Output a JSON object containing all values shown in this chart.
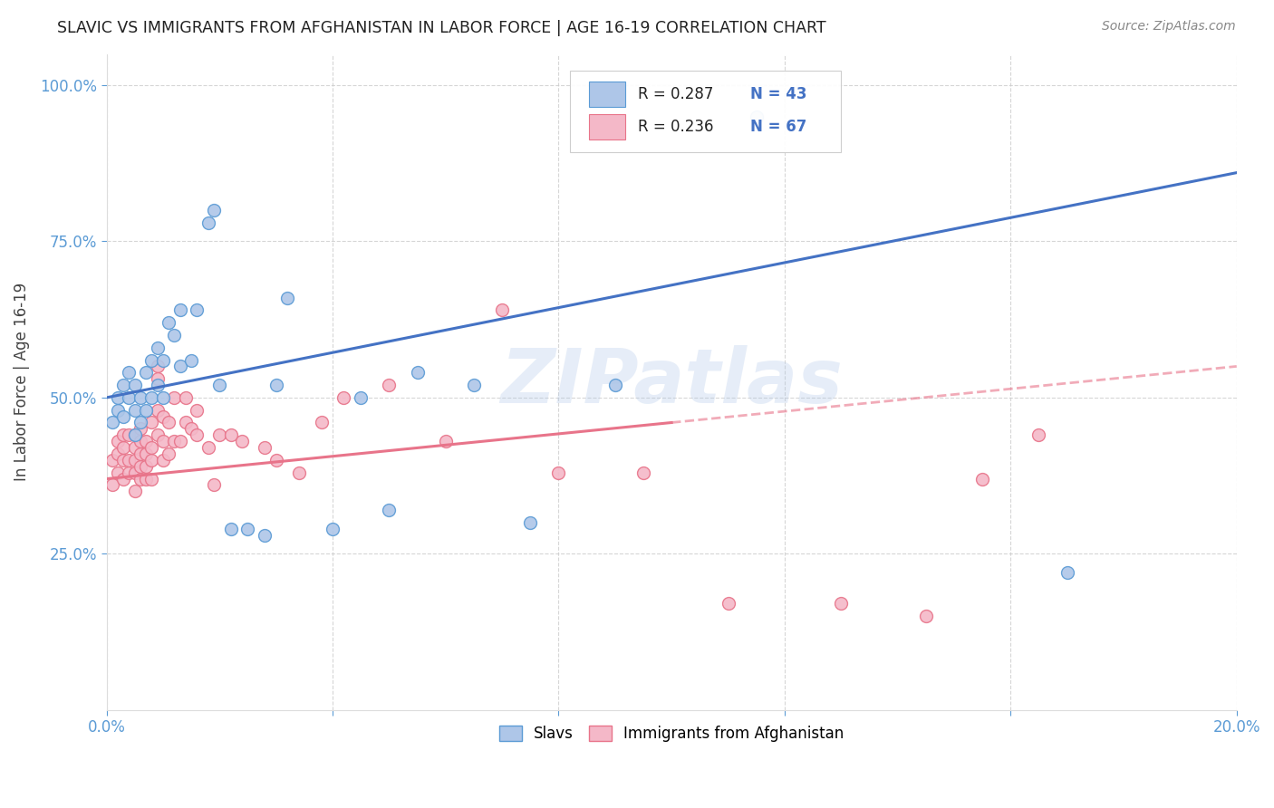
{
  "title": "SLAVIC VS IMMIGRANTS FROM AFGHANISTAN IN LABOR FORCE | AGE 16-19 CORRELATION CHART",
  "source": "Source: ZipAtlas.com",
  "ylabel": "In Labor Force | Age 16-19",
  "xlim": [
    0.0,
    0.2
  ],
  "ylim": [
    0.0,
    1.05
  ],
  "yticks": [
    0.25,
    0.5,
    0.75,
    1.0
  ],
  "ytick_labels": [
    "25.0%",
    "50.0%",
    "75.0%",
    "100.0%"
  ],
  "xtick_positions": [
    0.0,
    0.04,
    0.08,
    0.12,
    0.16,
    0.2
  ],
  "xtick_labels": [
    "0.0%",
    "",
    "",
    "",
    "",
    "20.0%"
  ],
  "slavs_color": "#aec6e8",
  "slavs_edge_color": "#5b9bd5",
  "afghan_color": "#f4b8c8",
  "afghan_edge_color": "#e8748a",
  "line_slavs_color": "#4472c4",
  "line_afghan_color": "#e8748a",
  "R_slavs": 0.287,
  "N_slavs": 43,
  "R_afghan": 0.236,
  "N_afghan": 67,
  "watermark": "ZIPatlas",
  "background_color": "#ffffff",
  "grid_color": "#cccccc",
  "legend_label_slavs": "Slavs",
  "legend_label_afghan": "Immigrants from Afghanistan",
  "slavs_x": [
    0.001,
    0.002,
    0.002,
    0.003,
    0.003,
    0.004,
    0.004,
    0.005,
    0.005,
    0.005,
    0.006,
    0.006,
    0.007,
    0.007,
    0.008,
    0.008,
    0.009,
    0.009,
    0.01,
    0.01,
    0.011,
    0.012,
    0.013,
    0.013,
    0.015,
    0.016,
    0.018,
    0.019,
    0.02,
    0.022,
    0.025,
    0.028,
    0.03,
    0.032,
    0.04,
    0.045,
    0.05,
    0.055,
    0.065,
    0.075,
    0.09,
    0.115,
    0.17
  ],
  "slavs_y": [
    0.46,
    0.48,
    0.5,
    0.47,
    0.52,
    0.5,
    0.54,
    0.48,
    0.52,
    0.44,
    0.46,
    0.5,
    0.48,
    0.54,
    0.56,
    0.5,
    0.58,
    0.52,
    0.56,
    0.5,
    0.62,
    0.6,
    0.64,
    0.55,
    0.56,
    0.64,
    0.78,
    0.8,
    0.52,
    0.29,
    0.29,
    0.28,
    0.52,
    0.66,
    0.29,
    0.5,
    0.32,
    0.54,
    0.52,
    0.3,
    0.52,
    0.95,
    0.22
  ],
  "afghan_x": [
    0.001,
    0.001,
    0.002,
    0.002,
    0.002,
    0.003,
    0.003,
    0.003,
    0.003,
    0.004,
    0.004,
    0.004,
    0.005,
    0.005,
    0.005,
    0.005,
    0.005,
    0.006,
    0.006,
    0.006,
    0.006,
    0.006,
    0.007,
    0.007,
    0.007,
    0.007,
    0.008,
    0.008,
    0.008,
    0.008,
    0.009,
    0.009,
    0.009,
    0.009,
    0.01,
    0.01,
    0.01,
    0.011,
    0.011,
    0.012,
    0.012,
    0.013,
    0.014,
    0.014,
    0.015,
    0.016,
    0.016,
    0.018,
    0.019,
    0.02,
    0.022,
    0.024,
    0.028,
    0.03,
    0.034,
    0.038,
    0.042,
    0.05,
    0.06,
    0.07,
    0.08,
    0.095,
    0.11,
    0.13,
    0.145,
    0.155,
    0.165
  ],
  "afghan_y": [
    0.4,
    0.36,
    0.38,
    0.41,
    0.43,
    0.37,
    0.4,
    0.42,
    0.44,
    0.38,
    0.4,
    0.44,
    0.35,
    0.38,
    0.4,
    0.42,
    0.44,
    0.37,
    0.39,
    0.41,
    0.43,
    0.45,
    0.37,
    0.39,
    0.41,
    0.43,
    0.37,
    0.4,
    0.42,
    0.46,
    0.55,
    0.53,
    0.48,
    0.44,
    0.47,
    0.43,
    0.4,
    0.46,
    0.41,
    0.5,
    0.43,
    0.43,
    0.46,
    0.5,
    0.45,
    0.48,
    0.44,
    0.42,
    0.36,
    0.44,
    0.44,
    0.43,
    0.42,
    0.4,
    0.38,
    0.46,
    0.5,
    0.52,
    0.43,
    0.64,
    0.38,
    0.38,
    0.17,
    0.17,
    0.15,
    0.37,
    0.44
  ],
  "line_slavs_x0": 0.0,
  "line_slavs_y0": 0.5,
  "line_slavs_x1": 0.2,
  "line_slavs_y1": 0.86,
  "line_afghan_x0": 0.0,
  "line_afghan_y0": 0.37,
  "line_afghan_x1": 0.2,
  "line_afghan_y1": 0.55
}
